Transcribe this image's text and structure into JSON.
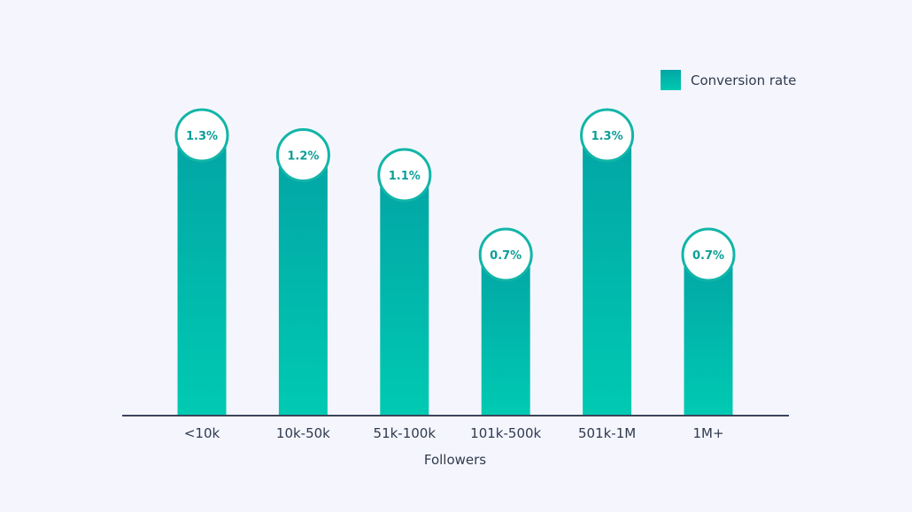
{
  "chart_data": {
    "type": "bar",
    "categories": [
      "<10k",
      "10k-50k",
      "51k-100k",
      "101k-500k",
      "501k-1M",
      "1M+"
    ],
    "series": [
      {
        "name": "Conversion rate",
        "values": [
          1.3,
          1.2,
          1.1,
          0.7,
          1.3,
          0.7
        ]
      }
    ],
    "data_labels": [
      "1.3%",
      "1.2%",
      "1.1%",
      "0.7%",
      "1.3%",
      "0.7%"
    ],
    "title": "",
    "xlabel": "Followers",
    "ylabel": "",
    "grid": false,
    "legend_position": "top-right",
    "colors": {
      "bar_top": "#02a5a5",
      "bar_bottom": "#00cab2",
      "circle_border": "#12b5a8",
      "label_text": "#0d9e98",
      "axis": "#39455a",
      "background": "#f5f6fd"
    }
  }
}
